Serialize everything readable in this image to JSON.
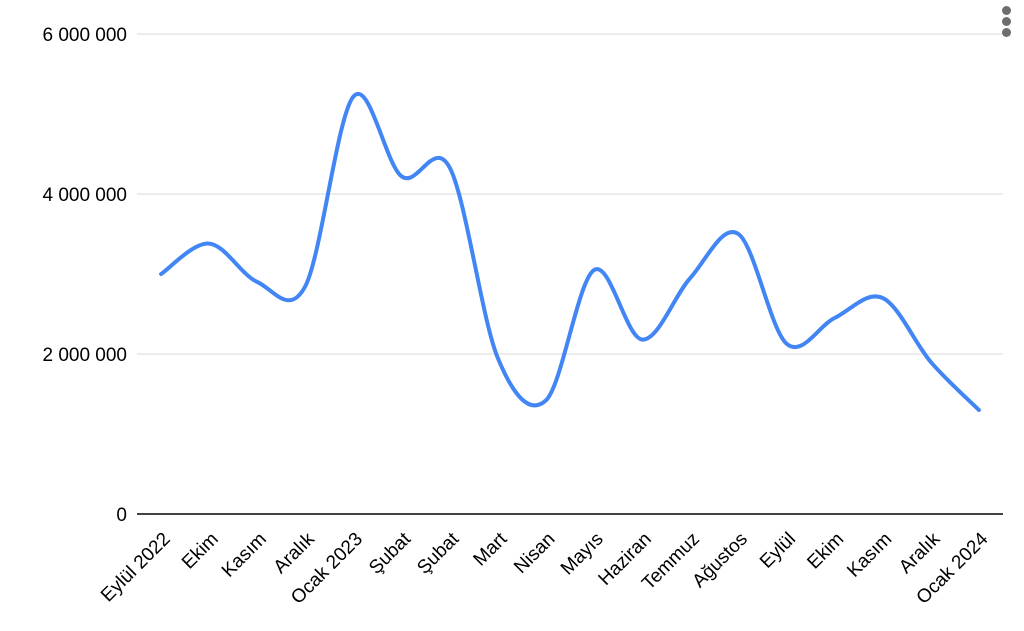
{
  "chart_data": {
    "type": "line",
    "title": "",
    "xlabel": "",
    "ylabel": "",
    "categories": [
      "Eylül 2022",
      "Ekim",
      "Kasım",
      "Aralık",
      "Ocak 2023",
      "Şubat",
      "Şubat",
      "Mart",
      "Nisan",
      "Mayıs",
      "Haziran",
      "Temmuz",
      "Ağustos",
      "Eylül",
      "Ekim",
      "Kasım",
      "Aralık",
      "Ocak 2024"
    ],
    "values": [
      3000000,
      3380000,
      2900000,
      2850000,
      5220000,
      4220000,
      4330000,
      1950000,
      1420000,
      3050000,
      2180000,
      2950000,
      3500000,
      2130000,
      2450000,
      2700000,
      1900000,
      1300000
    ],
    "ylim": [
      0,
      6000000
    ],
    "yticks": [
      0,
      2000000,
      4000000,
      6000000
    ],
    "ytick_labels": [
      "0",
      "2 000 000",
      "4 000 000",
      "6 000 000"
    ],
    "grid": true,
    "legend": "none",
    "smooth": true,
    "line_color": "#4285f4",
    "grid_color": "#d9d9d9",
    "axis_color": "#424242",
    "label_color": "#000000"
  },
  "menu": {
    "icon": "more-vertical-icon",
    "dot_color": "#6e6e6e"
  }
}
